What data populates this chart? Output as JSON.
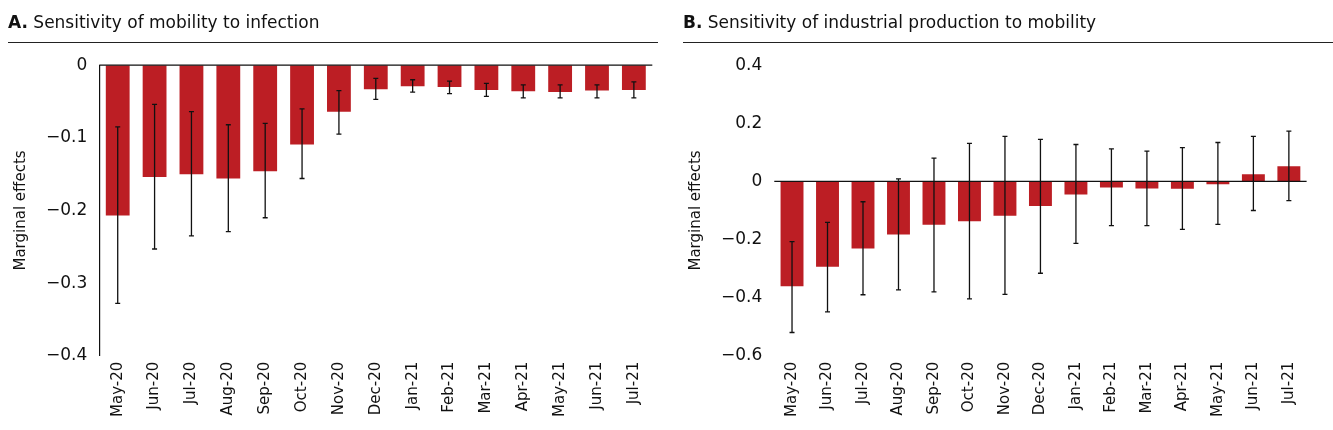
{
  "chart_data": [
    {
      "type": "bar",
      "title": "A. Sensitivity of mobility to infection",
      "ylabel": "Marginal effects",
      "categories": [
        "May-20",
        "Jun-20",
        "Jul-20",
        "Aug-20",
        "Sep-20",
        "Oct-20",
        "Nov-20",
        "Dec-20",
        "Jan-21",
        "Feb-21",
        "Mar-21",
        "Apr-21",
        "May-21",
        "Jun-21",
        "Jul-21"
      ],
      "series": [
        {
          "color": "#bc1e24",
          "values": [
            -0.207,
            -0.154,
            -0.15,
            -0.156,
            -0.146,
            -0.109,
            -0.064,
            -0.033,
            -0.029,
            -0.03,
            -0.034,
            -0.036,
            -0.037,
            -0.035,
            -0.034
          ],
          "errors": [
            [
              -0.328,
              -0.085
            ],
            [
              -0.253,
              -0.054
            ],
            [
              -0.235,
              -0.064
            ],
            [
              -0.229,
              -0.082
            ],
            [
              -0.21,
              -0.08
            ],
            [
              -0.156,
              -0.06
            ],
            [
              -0.095,
              -0.035
            ],
            [
              -0.047,
              -0.018
            ],
            [
              -0.037,
              -0.02
            ],
            [
              -0.039,
              -0.022
            ],
            [
              -0.043,
              -0.025
            ],
            [
              -0.045,
              -0.027
            ],
            [
              -0.045,
              -0.027
            ],
            [
              -0.045,
              -0.027
            ],
            [
              -0.045,
              -0.023
            ]
          ]
        }
      ],
      "ylim": [
        -0.4,
        0
      ],
      "yticks": [
        0,
        -0.1,
        -0.2,
        -0.3,
        -0.4
      ],
      "ref_lines": [
        {
          "axis": "y",
          "value": 0,
          "color": "#111111"
        }
      ],
      "grid": false,
      "legend": false
    },
    {
      "type": "bar",
      "title": "B. Sensitivity of industrial production to mobility",
      "ylabel": "Marginal effects",
      "categories": [
        "May-20",
        "Jun-20",
        "Jul-20",
        "Aug-20",
        "Sep-20",
        "Oct-20",
        "Nov-20",
        "Dec-20",
        "Jan-21",
        "Feb-21",
        "Mar-21",
        "Apr-21",
        "May-21",
        "Jun-21",
        "Jul-21"
      ],
      "series": [
        {
          "color": "#bc1e24",
          "values": [
            -0.361,
            -0.294,
            -0.231,
            -0.183,
            -0.149,
            -0.137,
            -0.118,
            -0.085,
            -0.045,
            -0.021,
            -0.024,
            -0.025,
            -0.01,
            0.025,
            0.052
          ],
          "errors": [
            [
              -0.52,
              -0.207
            ],
            [
              -0.449,
              -0.141
            ],
            [
              -0.39,
              -0.07
            ],
            [
              -0.373,
              0.009
            ],
            [
              -0.38,
              0.08
            ],
            [
              -0.404,
              0.131
            ],
            [
              -0.389,
              0.155
            ],
            [
              -0.316,
              0.145
            ],
            [
              -0.213,
              0.127
            ],
            [
              -0.152,
              0.112
            ],
            [
              -0.152,
              0.104
            ],
            [
              -0.165,
              0.116
            ],
            [
              -0.148,
              0.134
            ],
            [
              -0.1,
              0.155
            ],
            [
              -0.066,
              0.173
            ]
          ]
        }
      ],
      "ylim": [
        -0.6,
        0.4
      ],
      "yticks": [
        0.4,
        0.2,
        0,
        -0.2,
        -0.4,
        -0.6
      ],
      "ref_lines": [
        {
          "axis": "y",
          "value": 0,
          "color": "#111111"
        }
      ],
      "grid": false,
      "legend": false
    }
  ]
}
